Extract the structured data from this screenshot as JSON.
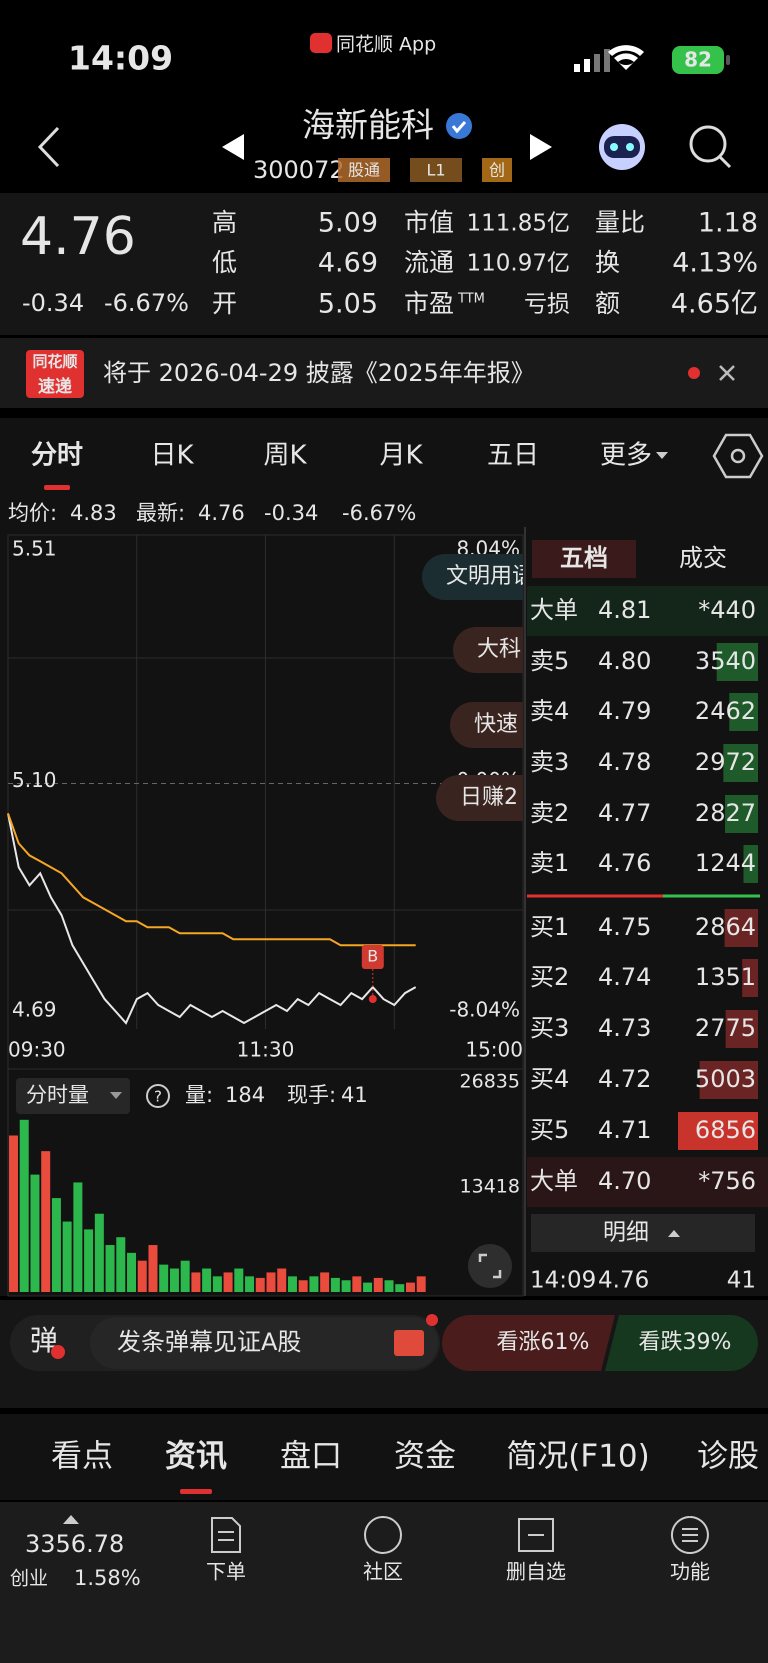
{
  "status_bar": {
    "time": "14:09",
    "app": "同花顺 App",
    "battery": "82"
  },
  "header": {
    "title": "海新能科",
    "code": "300072",
    "tags": [
      "股通",
      "L1",
      "创"
    ]
  },
  "quote": {
    "price": "4.76",
    "change": "-0.34",
    "change_pct": "-6.67%",
    "fields": [
      [
        {
          "label": "高",
          "value": "5.09"
        },
        {
          "label": "市值",
          "value": "111.85亿"
        },
        {
          "label": "量比",
          "value": "1.18"
        }
      ],
      [
        {
          "label": "低",
          "value": "4.69"
        },
        {
          "label": "流通",
          "value": "110.97亿"
        },
        {
          "label": "换",
          "value": "4.13%"
        }
      ],
      [
        {
          "label": "开",
          "value": "5.05"
        },
        {
          "label": "市盈",
          "sup": "TTM",
          "value": "亏损"
        },
        {
          "label": "额",
          "value": "4.65亿"
        }
      ]
    ]
  },
  "notice": {
    "logo": [
      "同花顺",
      "速递"
    ],
    "text": "将于 2026-04-29 披露《2025年年报》"
  },
  "tabs": [
    "分时",
    "日K",
    "周K",
    "月K",
    "五日",
    "更多"
  ],
  "info": {
    "avg_label": "均价:",
    "avg": "4.83",
    "last_label": "最新:",
    "last": "4.76",
    "change": "-0.34",
    "change_pct": "-6.67%"
  },
  "chart_data": [
    {
      "type": "line",
      "x": [
        0,
        5,
        10,
        15,
        20,
        25,
        30,
        35,
        40,
        45,
        50,
        55,
        60,
        65,
        70,
        75,
        80,
        85,
        90,
        95,
        100,
        105,
        110,
        115,
        120,
        125,
        130,
        135,
        140,
        145,
        150,
        155,
        160,
        165,
        170,
        175,
        180,
        185,
        190
      ],
      "xlim": [
        0,
        240
      ],
      "xticks": [
        {
          "value": 0,
          "label": "09:30"
        },
        {
          "value": 120,
          "label": "11:30"
        },
        {
          "value": 240,
          "label": "15:00"
        }
      ],
      "ylim": [
        4.69,
        5.51
      ],
      "yticks": [
        4.69,
        {
          "value": 5.1,
          "label": "5.10"
        },
        5.51
      ],
      "y2lim": [
        -8.04,
        8.04
      ],
      "y2ticks": [
        {
          "value": -8.04,
          "label": "-8.04%"
        },
        {
          "value": 0,
          "label": "0.00%"
        },
        {
          "value": 8.04,
          "label": "8.04%"
        }
      ],
      "series": [
        {
          "color": "#e8e8e8",
          "values": [
            5.05,
            4.96,
            4.93,
            4.95,
            4.91,
            4.88,
            4.83,
            4.8,
            4.77,
            4.74,
            4.72,
            4.7,
            4.74,
            4.75,
            4.73,
            4.72,
            4.71,
            4.73,
            4.72,
            4.71,
            4.72,
            4.71,
            4.7,
            4.71,
            4.72,
            4.73,
            4.72,
            4.74,
            4.73,
            4.75,
            4.74,
            4.73,
            4.75,
            4.74,
            4.76,
            4.74,
            4.73,
            4.75,
            4.76
          ]
        },
        {
          "color": "#f5a623",
          "values": [
            5.05,
            5.0,
            4.98,
            4.97,
            4.96,
            4.95,
            4.93,
            4.91,
            4.9,
            4.89,
            4.88,
            4.87,
            4.87,
            4.86,
            4.86,
            4.86,
            4.85,
            4.85,
            4.85,
            4.85,
            4.85,
            4.84,
            4.84,
            4.84,
            4.84,
            4.84,
            4.84,
            4.84,
            4.84,
            4.84,
            4.84,
            4.83,
            4.83,
            4.83,
            4.83,
            4.83,
            4.83,
            4.83,
            4.83
          ]
        }
      ],
      "annotations": [
        {
          "text": "B",
          "x": 170,
          "y": 4.74
        }
      ],
      "bubbles": [
        "文明用语",
        "大科",
        "快速",
        "日赚2"
      ],
      "grid": true
    },
    {
      "type": "bar",
      "title": "分时量",
      "stats": [
        {
          "label": "量:",
          "value": "184"
        },
        {
          "label": "现手:",
          "value": "41"
        }
      ],
      "x": [
        0,
        5,
        10,
        15,
        20,
        25,
        30,
        35,
        40,
        45,
        50,
        55,
        60,
        65,
        70,
        75,
        80,
        85,
        90,
        95,
        100,
        105,
        110,
        115,
        120,
        125,
        130,
        135,
        140,
        145,
        150,
        155,
        160,
        165,
        170,
        175,
        180,
        185,
        190
      ],
      "values": [
        20000,
        22000,
        15000,
        18000,
        12000,
        9000,
        14000,
        8000,
        10000,
        6000,
        7000,
        5000,
        4000,
        6000,
        3500,
        3000,
        4000,
        2500,
        3000,
        2000,
        2500,
        3000,
        2000,
        1800,
        2500,
        3000,
        2000,
        1500,
        2000,
        2500,
        1800,
        1500,
        2000,
        1200,
        1800,
        1500,
        1000,
        1200,
        2000
      ],
      "xlim": [
        0,
        240
      ],
      "ylim": [
        0,
        26835
      ],
      "yticks": [
        13418,
        26835
      ],
      "up_color": "#e94b3c",
      "down_color": "#2db84d"
    }
  ],
  "order_book": {
    "tabs": [
      "五档",
      "成交"
    ],
    "rows": [
      [
        "大单",
        "4.81",
        "*440"
      ],
      [
        "卖5",
        "4.80",
        "3540"
      ],
      [
        "卖4",
        "4.79",
        "2462"
      ],
      [
        "卖3",
        "4.78",
        "2972"
      ],
      [
        "卖2",
        "4.77",
        "2827"
      ],
      [
        "卖1",
        "4.76",
        "1244"
      ],
      [
        "买1",
        "4.75",
        "2864"
      ],
      [
        "买2",
        "4.74",
        "1351"
      ],
      [
        "买3",
        "4.73",
        "2775"
      ],
      [
        "买4",
        "4.72",
        "5003"
      ],
      [
        "买5",
        "4.71",
        "6856"
      ],
      [
        "大单",
        "4.70",
        "*756"
      ]
    ],
    "detail": "明细",
    "trade": [
      "14:09",
      "4.76",
      "41"
    ]
  },
  "danmu": {
    "icon": "弹",
    "placeholder": "发条弹幕见证A股",
    "bull": "看涨61%",
    "bear": "看跌39%"
  },
  "bottom_tabs": [
    "看点",
    "资讯",
    "盘口",
    "资金",
    "简况(F10)",
    "诊股"
  ],
  "nav": {
    "index": "3356.78",
    "board": "创业",
    "index_change": "1.58%",
    "items": [
      "下单",
      "社区",
      "删自选",
      "功能"
    ]
  }
}
